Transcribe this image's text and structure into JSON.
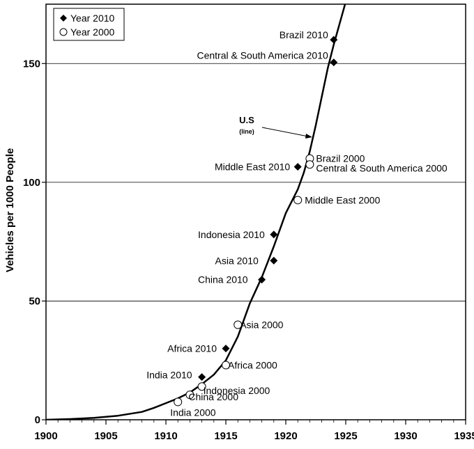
{
  "chart_data": {
    "type": "scatter",
    "title": "",
    "xlabel": "",
    "ylabel": "Vehicles per 1000 People",
    "xlim": [
      1900,
      1935
    ],
    "ylim": [
      0,
      175
    ],
    "xticks": [
      1900,
      1905,
      1910,
      1915,
      1920,
      1925,
      1930,
      1935
    ],
    "yticks": [
      0,
      50,
      100,
      150
    ],
    "grid": "horizontal",
    "legend": {
      "placement": "top-left",
      "entries": [
        {
          "label": "Year 2010",
          "marker": "filled-diamond"
        },
        {
          "label": "Year 2000",
          "marker": "open-circle"
        }
      ]
    },
    "us_line": {
      "label": "U.S",
      "sublabel": "(line)",
      "x": [
        1900,
        1902,
        1904,
        1906,
        1908,
        1909,
        1910,
        1911,
        1912,
        1913,
        1914,
        1915,
        1916,
        1917,
        1918,
        1919,
        1920,
        1921,
        1921.5,
        1922,
        1922.5,
        1923,
        1923.5,
        1924,
        1924.5,
        1925,
        1925.3
      ],
      "y": [
        0,
        0.3,
        0.8,
        1.7,
        3.3,
        5,
        7,
        9,
        11.5,
        15,
        19,
        25,
        35,
        49,
        60,
        73,
        87,
        97,
        104,
        113,
        124,
        136,
        148,
        158,
        167,
        176,
        182
      ]
    },
    "series": [
      {
        "name": "Year 2010",
        "marker": "filled-diamond",
        "points": [
          {
            "x": 1924,
            "y": 160,
            "label": "Brazil 2010"
          },
          {
            "x": 1924,
            "y": 150.5,
            "label": "Central & South America 2010"
          },
          {
            "x": 1921,
            "y": 106.5,
            "label": "Middle East 2010"
          },
          {
            "x": 1919,
            "y": 78,
            "label": "Indonesia 2010"
          },
          {
            "x": 1919,
            "y": 67,
            "label": "Asia 2010"
          },
          {
            "x": 1918,
            "y": 59,
            "label": "China 2010"
          },
          {
            "x": 1915,
            "y": 30,
            "label": "Africa 2010"
          },
          {
            "x": 1913,
            "y": 18,
            "label": "India 2010"
          }
        ]
      },
      {
        "name": "Year 2000",
        "marker": "open-circle",
        "points": [
          {
            "x": 1922,
            "y": 110,
            "label": "Brazil 2000"
          },
          {
            "x": 1922,
            "y": 107.5,
            "label": "Central & South America 2000"
          },
          {
            "x": 1921,
            "y": 92.5,
            "label": "Middle East 2000"
          },
          {
            "x": 1916,
            "y": 40,
            "label": "Asia 2000"
          },
          {
            "x": 1915,
            "y": 23,
            "label": "Africa 2000"
          },
          {
            "x": 1913,
            "y": 14,
            "label": "Indonesia 2000"
          },
          {
            "x": 1912,
            "y": 10.5,
            "label": "China 2000"
          },
          {
            "x": 1911,
            "y": 7.5,
            "label": "India 2000"
          }
        ]
      }
    ]
  }
}
